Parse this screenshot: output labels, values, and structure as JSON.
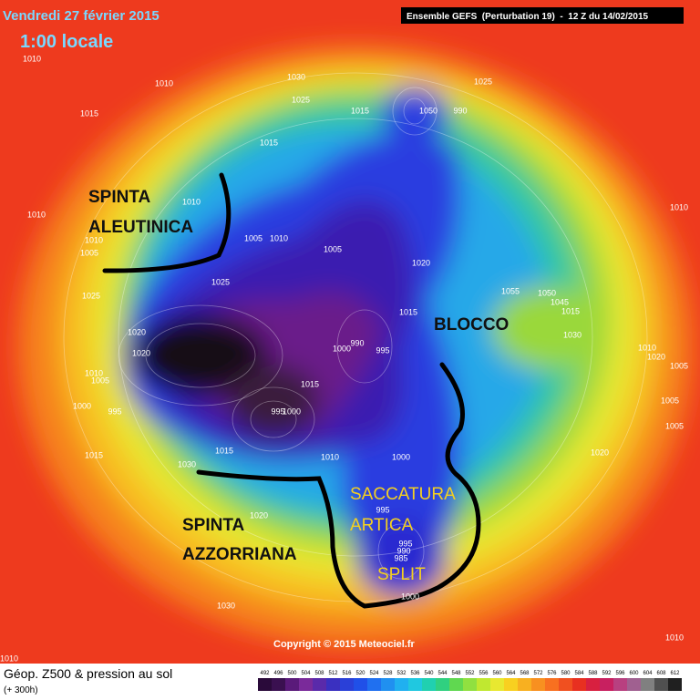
{
  "header": {
    "date": "Vendredi 27 février 2015",
    "time": "1:00 locale",
    "model": "Ensemble GEFS  (Perturbation 19)  -  12 Z du 14/02/2015"
  },
  "annotations": [
    "SPINTA",
    "ALEUTINICA",
    "BLOCCO",
    "SACCATURA",
    "ARTICA",
    "SPLIT",
    "SPINTA",
    "AZZORRIANA"
  ],
  "isobar_labels": [
    1010,
    1010,
    1030,
    1025,
    1025,
    1015,
    1015,
    1050,
    990,
    1015,
    1010,
    1010,
    1010,
    1005,
    1005,
    1010,
    1005,
    1020,
    1025,
    1025,
    1055,
    1050,
    1045,
    1015,
    1010,
    1010,
    1020,
    1005,
    1030,
    1020,
    1020,
    1000,
    990,
    995,
    1015,
    1010,
    1005,
    1000,
    995,
    1015,
    995,
    1000,
    1015,
    1010,
    1000,
    1015,
    1030,
    995,
    995,
    990,
    985,
    1000,
    1030,
    1020,
    1005,
    1005,
    1020,
    1010,
    1010
  ],
  "copyright": "Copyright © 2015 Meteociel.fr",
  "footer": {
    "title": "Géop. Z500 & pression au sol",
    "subtitle": "(+ 300h)"
  },
  "legend": {
    "levels": [
      492,
      496,
      500,
      504,
      508,
      512,
      516,
      520,
      524,
      528,
      532,
      536,
      540,
      544,
      548,
      552,
      556,
      560,
      564,
      568,
      572,
      576,
      580,
      584,
      588,
      592,
      596,
      600,
      604,
      608,
      612
    ]
  }
}
